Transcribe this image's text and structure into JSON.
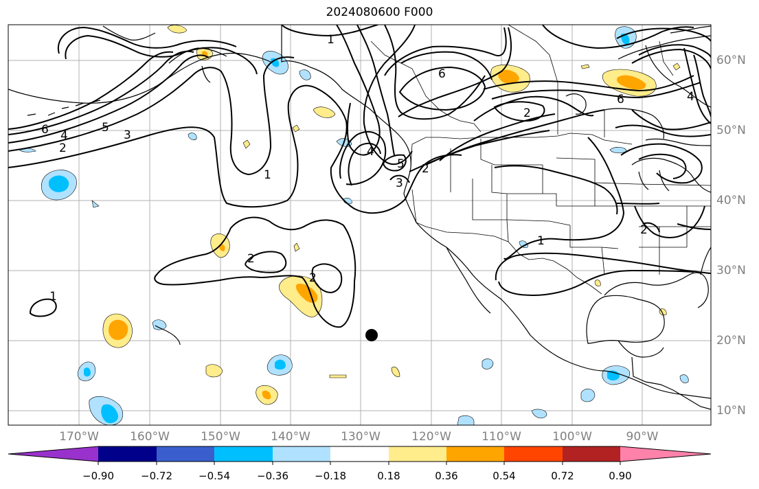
{
  "title": "2024080600 F000",
  "lon_labels": [
    "170°W",
    "160°W",
    "150°W",
    "140°W",
    "130°W",
    "120°W",
    "110°W",
    "100°W",
    "90°W"
  ],
  "lat_labels": [
    "60°N",
    "50°N",
    "40°N",
    "30°N",
    "20°N",
    "10°N"
  ],
  "colorbar": {
    "tick_labels": [
      "−0.90",
      "−0.72",
      "−0.54",
      "−0.36",
      "−0.18",
      "0.18",
      "0.36",
      "0.54",
      "0.72",
      "0.90"
    ],
    "colors": [
      "#9932cc",
      "#00008b",
      "#3a5fcd",
      "#00bfff",
      "#b0e2ff",
      "#ffffff",
      "#ffec8b",
      "#ffa500",
      "#ff4500",
      "#b22222",
      "#ff82ab"
    ]
  },
  "contour_labels": [
    "1",
    "2",
    "3",
    "4",
    "5",
    "6"
  ],
  "colors": {
    "grid": "#b0b0b0",
    "axis_label": "#808080",
    "contour": "#000000"
  }
}
